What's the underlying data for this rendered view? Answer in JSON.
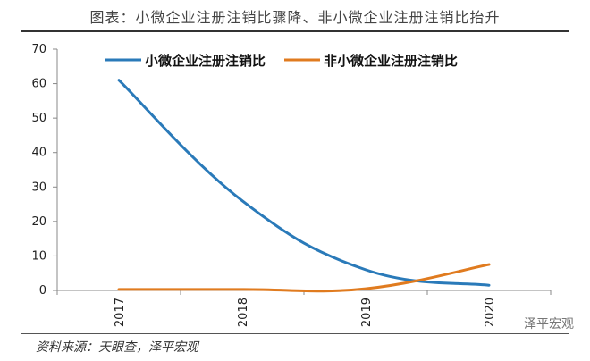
{
  "figure": {
    "title": "图表：小微企业注册注销比骤降、非小微企业注册注销比抬升",
    "source": "资料来源：天眼查，泽平宏观",
    "watermark": "泽平宏观"
  },
  "chart_data": {
    "type": "line",
    "title": "图表：小微企业注册注销比骤降、非小微企业注册注销比抬升",
    "xlabel": "",
    "ylabel": "",
    "categories": [
      "2017",
      "2018",
      "2019",
      "2020"
    ],
    "ylim": [
      0,
      70
    ],
    "yticks": [
      0,
      10,
      20,
      30,
      40,
      50,
      60,
      70
    ],
    "grid": false,
    "legend_position": "top",
    "series": [
      {
        "name": "小微企业注册注销比",
        "color": "#2a7ab9",
        "values": [
          61,
          26,
          6,
          1.5
        ]
      },
      {
        "name": "非小微企业注册注销比",
        "color": "#e07b1f",
        "values": [
          0.3,
          0.3,
          0.5,
          7.5
        ]
      }
    ]
  }
}
